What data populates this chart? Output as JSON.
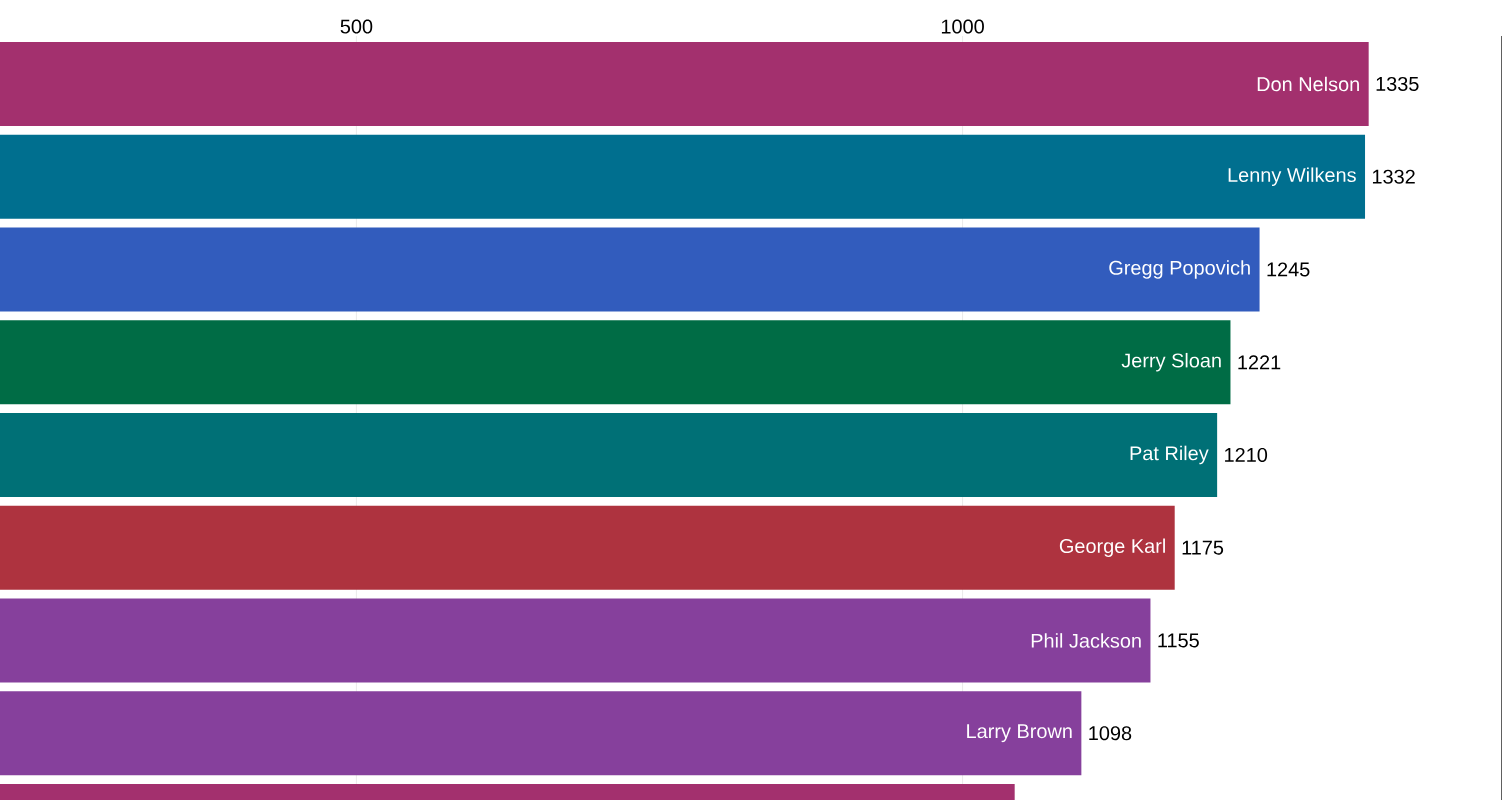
{
  "chart_data": {
    "type": "bar",
    "orientation": "horizontal",
    "categories": [
      "Don Nelson",
      "Lenny Wilkens",
      "Gregg Popovich",
      "Jerry Sloan",
      "Pat Riley",
      "George Karl",
      "Phil Jackson",
      "Larry Brown",
      null
    ],
    "values": [
      1335,
      1332,
      1245,
      1221,
      1210,
      1175,
      1155,
      1098,
      1043
    ],
    "value_labels": [
      "1335",
      "1332",
      "1245",
      "1221",
      "1210",
      "1175",
      "1155",
      "1098",
      null
    ],
    "colors": [
      "#a3306e",
      "#006f8f",
      "#325cbd",
      "#006c45",
      "#007076",
      "#ae333f",
      "#86409c",
      "#86409c",
      "#a3306e"
    ],
    "xlim": [
      206,
      1445
    ],
    "xticks": [
      500,
      1000
    ],
    "grid": "x"
  }
}
